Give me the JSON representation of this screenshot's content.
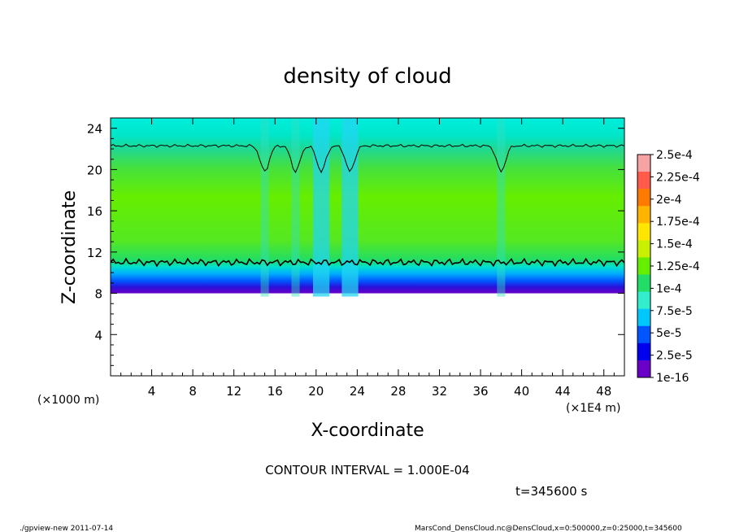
{
  "chart_data": {
    "type": "heatmap",
    "title": "density of cloud",
    "xlabel": "X-coordinate",
    "ylabel": "Z-coordinate",
    "x_unit_label": "(×1E4 m)",
    "y_unit_label": "(×1000 m)",
    "xlim": [
      0,
      50
    ],
    "ylim": [
      0,
      25
    ],
    "x_ticks": [
      "4",
      "8",
      "12",
      "16",
      "20",
      "24",
      "28",
      "32",
      "36",
      "40",
      "44",
      "48"
    ],
    "y_ticks": [
      "4",
      "8",
      "12",
      "16",
      "20",
      "24"
    ],
    "x_tick_values": [
      4,
      8,
      12,
      16,
      20,
      24,
      28,
      32,
      36,
      40,
      44,
      48
    ],
    "y_tick_values": [
      4,
      8,
      12,
      16,
      20,
      24
    ],
    "colorbar": {
      "labels": [
        "2.5e-4",
        "2.25e-4",
        "2e-4",
        "1.75e-4",
        "1.5e-4",
        "1.25e-4",
        "1e-4",
        "7.5e-5",
        "5e-5",
        "2.5e-5",
        "1e-16"
      ],
      "colors": [
        "#f7a3a3",
        "#ff5a4a",
        "#ff7a00",
        "#ffb400",
        "#ffe600",
        "#c8f000",
        "#66ee00",
        "#22dd66",
        "#33eecc",
        "#00c8ff",
        "#0055ff",
        "#0000ee",
        "#6a00c8"
      ]
    },
    "contour_interval_text": "CONTOUR INTERVAL = 1.000E-04",
    "cloud_layer": {
      "bottom_z": 8.0,
      "top_z": 25.0,
      "contour_lower_z": 11.0,
      "contour_upper_z": 22.3,
      "dips_x": [
        15.0,
        18.0,
        20.5,
        23.3,
        38.0
      ]
    }
  },
  "time_label": "t=345600 s",
  "footer": {
    "left": "./gpview-new  2011-07-14",
    "right": "MarsCond_DensCloud.nc@DensCloud,x=0:500000,z=0:25000,t=345600"
  }
}
